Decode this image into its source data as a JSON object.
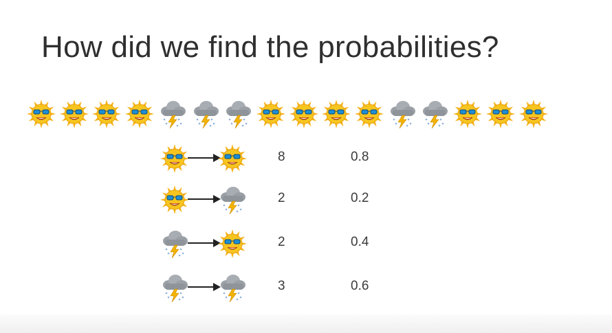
{
  "slide": {
    "title": "How did we find the probabilities?"
  },
  "icons": {
    "sun": "sun-with-sunglasses-icon",
    "storm": "storm-cloud-icon"
  },
  "colors": {
    "sun_ray": "#f6b21a",
    "sun_face": "#f7c51f",
    "glasses": "#1c8fd6",
    "cloud": "#9aa0a6",
    "rain": "#8fb3d9",
    "lightning": "#f3b300",
    "arrow": "#222222"
  },
  "sequence": [
    "sun",
    "sun",
    "sun",
    "sun",
    "storm",
    "storm",
    "storm",
    "sun",
    "sun",
    "sun",
    "sun",
    "storm",
    "storm",
    "sun",
    "sun",
    "sun"
  ],
  "transitions": [
    {
      "from": "sun",
      "to": "sun",
      "count": "8",
      "probability": "0.8"
    },
    {
      "from": "sun",
      "to": "storm",
      "count": "2",
      "probability": "0.2"
    },
    {
      "from": "storm",
      "to": "sun",
      "count": "2",
      "probability": "0.4"
    },
    {
      "from": "storm",
      "to": "storm",
      "count": "3",
      "probability": "0.6"
    }
  ]
}
